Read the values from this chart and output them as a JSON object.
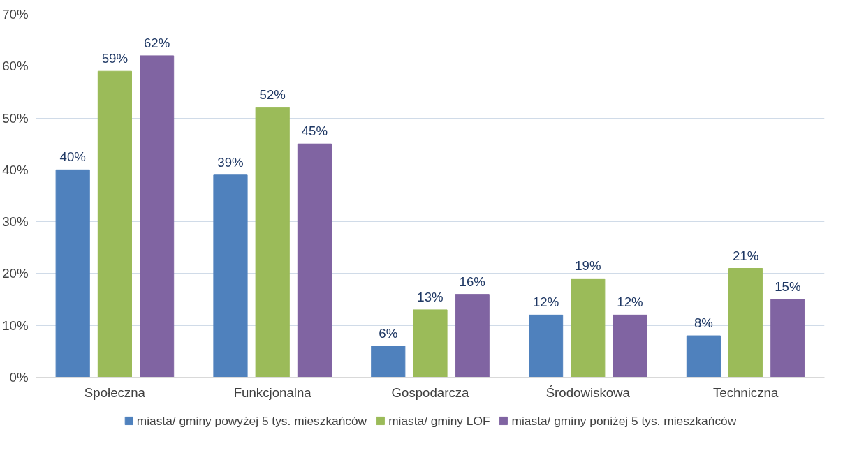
{
  "chart_data": {
    "type": "bar",
    "categories": [
      "Społeczna",
      "Funkcjonalna",
      "Gospodarcza",
      "Środowiskowa",
      "Techniczna"
    ],
    "series": [
      {
        "name": "miasta/ gminy powyżej 5 tys. mieszkańców",
        "color": "#4f81bd",
        "values": [
          40,
          39,
          6,
          12,
          8
        ],
        "value_labels": [
          "40%",
          "39%",
          "6%",
          "12%",
          "8%"
        ]
      },
      {
        "name": "miasta/ gminy LOF",
        "color": "#9bbb59",
        "values": [
          59,
          52,
          13,
          19,
          21
        ],
        "value_labels": [
          "59%",
          "52%",
          "13%",
          "19%",
          "21%"
        ]
      },
      {
        "name": "miasta/ gminy poniżej 5 tys. mieszkańców",
        "color": "#8064a2",
        "values": [
          62,
          45,
          16,
          12,
          15
        ],
        "value_labels": [
          "62%",
          "45%",
          "16%",
          "12%",
          "15%"
        ]
      }
    ],
    "ylim": [
      0,
      70
    ],
    "yticks": [
      {
        "value": 0,
        "label": "0%"
      },
      {
        "value": 10,
        "label": "10%"
      },
      {
        "value": 20,
        "label": "20%"
      },
      {
        "value": 30,
        "label": "30%"
      },
      {
        "value": 40,
        "label": "40%"
      },
      {
        "value": 50,
        "label": "50%"
      },
      {
        "value": 60,
        "label": "60%"
      },
      {
        "value": 70,
        "label": "70%"
      }
    ],
    "grid": "y",
    "legend": "bottom"
  }
}
